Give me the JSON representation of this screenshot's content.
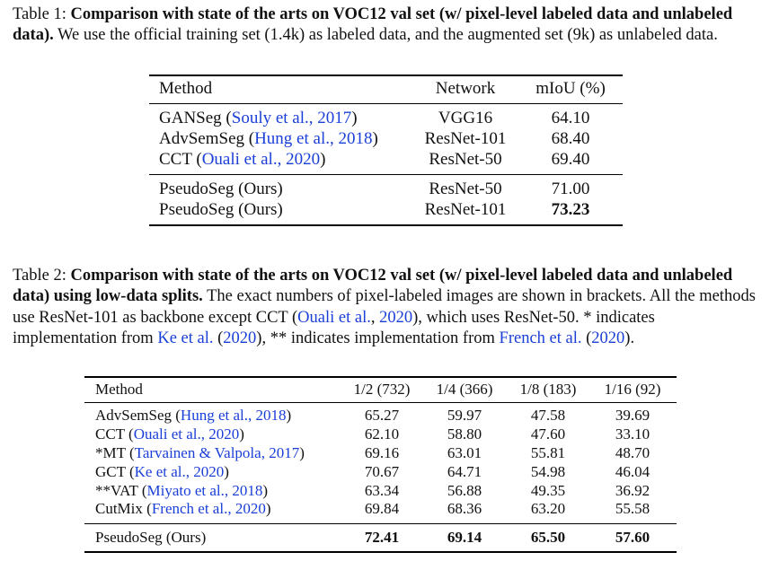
{
  "table1": {
    "caption_label": "Table 1:",
    "caption_bold": "Comparison with state of the arts on VOC12 val set (w/ pixel-level labeled data and unlabeled data).",
    "caption_rest": "We use the official training set (1.4k) as labeled data, and the augmented set (9k) as unlabeled data.",
    "headers": [
      "Method",
      "Network",
      "mIoU (%)"
    ],
    "rows": [
      {
        "method": "GANSeg",
        "cite": "Souly et al., 2017",
        "network": "VGG16",
        "miou": "64.10"
      },
      {
        "method": "AdvSemSeg",
        "cite": "Hung et al., 2018",
        "network": "ResNet-101",
        "miou": "68.40"
      },
      {
        "method": "CCT",
        "cite": "Ouali et al., 2020",
        "network": "ResNet-50",
        "miou": "69.40"
      },
      {
        "method": "PseudoSeg (Ours)",
        "cite": "",
        "network": "ResNet-50",
        "miou": "71.00"
      },
      {
        "method": "PseudoSeg (Ours)",
        "cite": "",
        "network": "ResNet-101",
        "miou": "73.23"
      }
    ]
  },
  "table2": {
    "caption_label": "Table 2:",
    "caption_bold": "Comparison with state of the arts on VOC12 val set (w/ pixel-level labeled data and unlabeled data) using low-data splits.",
    "caption_p1": "The exact numbers of pixel-labeled images are shown in brackets. All the methods use ResNet-101 as backbone except CCT (",
    "caption_c1": "Ouali et al.",
    "caption_p2": ", ",
    "caption_c1y": "2020",
    "caption_p3": "), which uses ResNet-50. * indicates implementation from ",
    "caption_c2": "Ke et al.",
    "caption_p4": " (",
    "caption_c2y": "2020",
    "caption_p5": "), ** indicates implementation from ",
    "caption_c3": "French et al.",
    "caption_p6": " (",
    "caption_c3y": "2020",
    "caption_p7": ").",
    "headers": [
      "Method",
      "1/2 (732)",
      "1/4 (366)",
      "1/8 (183)",
      "1/16 (92)"
    ],
    "rows": [
      {
        "method": "AdvSemSeg",
        "cite": "Hung et al., 2018",
        "v": [
          "65.27",
          "59.97",
          "47.58",
          "39.69"
        ]
      },
      {
        "method": "CCT",
        "cite": "Ouali et al., 2020",
        "v": [
          "62.10",
          "58.80",
          "47.60",
          "33.10"
        ]
      },
      {
        "method": "*MT",
        "cite": "Tarvainen & Valpola, 2017",
        "v": [
          "69.16",
          "63.01",
          "55.81",
          "48.70"
        ]
      },
      {
        "method": "GCT",
        "cite": "Ke et al., 2020",
        "v": [
          "70.67",
          "64.71",
          "54.98",
          "46.04"
        ]
      },
      {
        "method": "**VAT",
        "cite": "Miyato et al., 2018",
        "v": [
          "63.34",
          "56.88",
          "49.35",
          "36.92"
        ]
      },
      {
        "method": "CutMix",
        "cite": "French et al., 2020",
        "v": [
          "69.84",
          "68.36",
          "63.20",
          "55.58"
        ]
      },
      {
        "method": "PseudoSeg (Ours)",
        "cite": "",
        "v": [
          "72.41",
          "69.14",
          "65.50",
          "57.60"
        ]
      }
    ]
  }
}
